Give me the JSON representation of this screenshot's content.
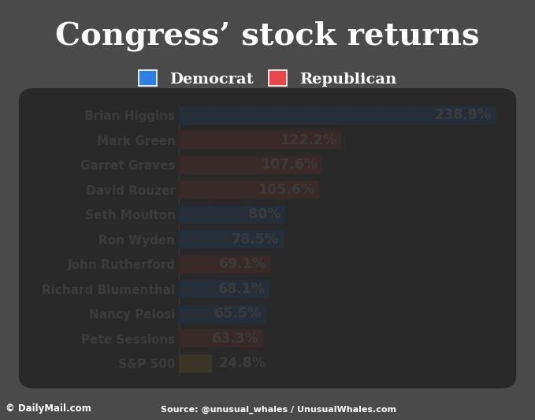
{
  "chart_data": {
    "type": "bar",
    "title": "Congress’ stock returns",
    "orientation": "horizontal",
    "categories": [
      "Brian Higgins",
      "Mark Green",
      "Garret Graves",
      "David Rouzer",
      "Seth Moulton",
      "Ron Wyden",
      "John Rutherford",
      "Richard Blumenthal",
      "Nancy Pelosi",
      "Pete Sessions",
      "S&P 500"
    ],
    "values": [
      238.9,
      122.2,
      107.6,
      105.6,
      80,
      78.5,
      69.1,
      68.1,
      65.5,
      63.3,
      24.8
    ],
    "value_labels": [
      "238.9%",
      "122.2%",
      "107.6%",
      "105.6%",
      "80%",
      "78.5%",
      "69.1%",
      "68.1%",
      "65.5%",
      "63.3%",
      "24.8%"
    ],
    "colors": [
      "#2f7fe3",
      "#e8474c",
      "#e8474c",
      "#e8474c",
      "#2f7fe3",
      "#2f7fe3",
      "#e8474c",
      "#2f7fe3",
      "#2f7fe3",
      "#e8474c",
      "#e3b124"
    ],
    "legend_entries": [
      {
        "name": "Democrat",
        "color": "#2f7fe3"
      },
      {
        "name": "Republican",
        "color": "#e8474c"
      }
    ],
    "legend": "upper center",
    "data_labels": true,
    "xlim": [
      0,
      250
    ],
    "xticks": [
      0,
      25,
      50,
      75,
      100,
      125,
      150,
      175,
      200,
      225,
      250
    ],
    "grid": true,
    "tick_labels": "y",
    "footer_left": "© DailyMail.com",
    "source": "Source: @unusual_whales / UnusualWhales.com"
  }
}
